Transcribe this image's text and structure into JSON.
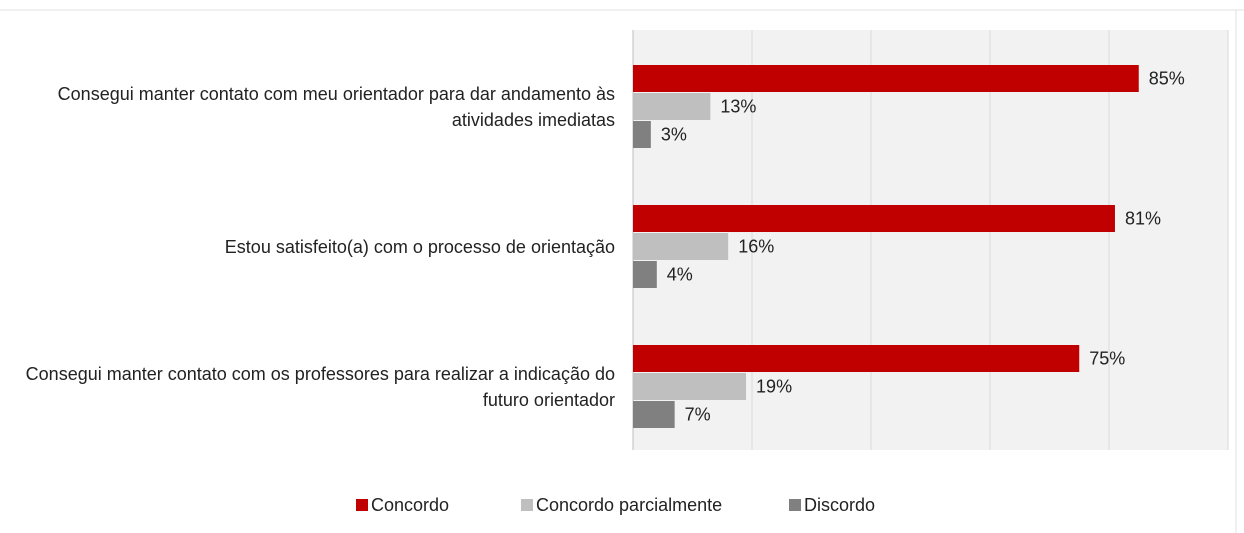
{
  "chart_data": {
    "type": "hbar",
    "categories": [
      "Consegui manter contato com meu orientador para dar andamento às atividades imediatas",
      "Estou satisfeito(a) com o processo de orientação",
      "Consegui manter contato com os professores para realizar a indicação do futuro orientador"
    ],
    "series": [
      {
        "name": "Concordo",
        "color": "#c00000",
        "values": [
          85,
          81,
          75
        ],
        "value_labels": [
          "85%",
          "81%",
          "75%"
        ]
      },
      {
        "name": "Concordo parcialmente",
        "color": "#bfbfbf",
        "values": [
          13,
          16,
          19
        ],
        "value_labels": [
          "13%",
          "16%",
          "19%"
        ]
      },
      {
        "name": "Discordo",
        "color": "#808080",
        "values": [
          3,
          4,
          7
        ],
        "value_labels": [
          "3%",
          "4%",
          "7%"
        ]
      }
    ],
    "xlim": [
      0,
      100
    ],
    "xticks": [
      0,
      20,
      40,
      60,
      80,
      100
    ],
    "grid": true,
    "legend": "bottom"
  }
}
